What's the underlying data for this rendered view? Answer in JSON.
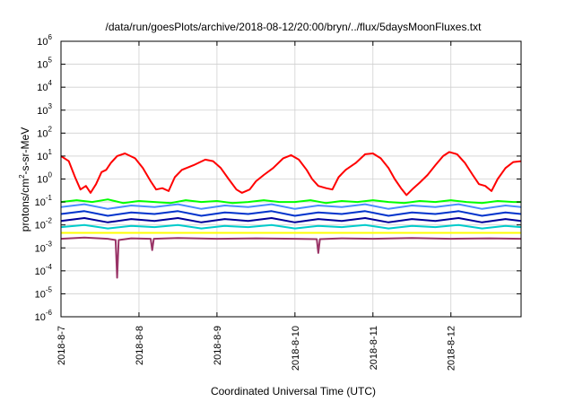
{
  "chart_data": {
    "type": "line",
    "title": "/data/run/goesPlots/archive/2018-08-12/20:00/bryn/../flux/5daysMoonFluxes.txt",
    "xlabel": "Coordinated Universal Time (UTC)",
    "ylabel": "protons/cm²-s-sr-MeV",
    "ylabel_parts": {
      "pre": "protons/cm",
      "sup": "2",
      "post": "-s-sr-MeV"
    },
    "y_scale": "log",
    "ylim": [
      1e-06,
      1000000.0
    ],
    "y_ticks": [
      {
        "base": "10",
        "exp": "-6",
        "value": 1e-06
      },
      {
        "base": "10",
        "exp": "-5",
        "value": 1e-05
      },
      {
        "base": "10",
        "exp": "-4",
        "value": 0.0001
      },
      {
        "base": "10",
        "exp": "-3",
        "value": 0.001
      },
      {
        "base": "10",
        "exp": "-2",
        "value": 0.01
      },
      {
        "base": "10",
        "exp": "-1",
        "value": 0.1
      },
      {
        "base": "10",
        "exp": "0",
        "value": 1
      },
      {
        "base": "10",
        "exp": "1",
        "value": 10
      },
      {
        "base": "10",
        "exp": "2",
        "value": 100
      },
      {
        "base": "10",
        "exp": "3",
        "value": 1000
      },
      {
        "base": "10",
        "exp": "4",
        "value": 10000
      },
      {
        "base": "10",
        "exp": "5",
        "value": 100000
      },
      {
        "base": "10",
        "exp": "6",
        "value": 1000000
      }
    ],
    "xlim_days": [
      0,
      5.9
    ],
    "x_ticks": [
      {
        "label": "2018-8-7",
        "day": 0
      },
      {
        "label": "2018-8-8",
        "day": 1
      },
      {
        "label": "2018-8-9",
        "day": 2
      },
      {
        "label": "2018-8-10",
        "day": 3
      },
      {
        "label": "2018-8-11",
        "day": 4
      },
      {
        "label": "2018-8-12",
        "day": 5
      }
    ],
    "grid": true,
    "legend": "none",
    "series": [
      {
        "color": "#ff0000",
        "points": [
          [
            0,
            10
          ],
          [
            0.1,
            6
          ],
          [
            0.18,
            1.2
          ],
          [
            0.25,
            0.35
          ],
          [
            0.32,
            0.5
          ],
          [
            0.38,
            0.25
          ],
          [
            0.45,
            0.6
          ],
          [
            0.52,
            2
          ],
          [
            0.58,
            2.5
          ],
          [
            0.64,
            5
          ],
          [
            0.72,
            10
          ],
          [
            0.82,
            13
          ],
          [
            0.95,
            8
          ],
          [
            1.05,
            3
          ],
          [
            1.15,
            0.8
          ],
          [
            1.22,
            0.35
          ],
          [
            1.3,
            0.4
          ],
          [
            1.38,
            0.3
          ],
          [
            1.46,
            1.2
          ],
          [
            1.55,
            2.5
          ],
          [
            1.7,
            4
          ],
          [
            1.85,
            7
          ],
          [
            1.95,
            6
          ],
          [
            2.05,
            3
          ],
          [
            2.15,
            1
          ],
          [
            2.25,
            0.35
          ],
          [
            2.32,
            0.25
          ],
          [
            2.42,
            0.35
          ],
          [
            2.5,
            0.8
          ],
          [
            2.6,
            1.5
          ],
          [
            2.72,
            3
          ],
          [
            2.85,
            8
          ],
          [
            2.95,
            11
          ],
          [
            3.05,
            7
          ],
          [
            3.15,
            2.5
          ],
          [
            3.22,
            1
          ],
          [
            3.3,
            0.5
          ],
          [
            3.4,
            0.4
          ],
          [
            3.48,
            0.35
          ],
          [
            3.56,
            1.2
          ],
          [
            3.65,
            2.5
          ],
          [
            3.78,
            5
          ],
          [
            3.9,
            12
          ],
          [
            4,
            13
          ],
          [
            4.1,
            8
          ],
          [
            4.2,
            3
          ],
          [
            4.28,
            1
          ],
          [
            4.36,
            0.4
          ],
          [
            4.43,
            0.2
          ],
          [
            4.52,
            0.4
          ],
          [
            4.6,
            0.7
          ],
          [
            4.7,
            1.5
          ],
          [
            4.8,
            4
          ],
          [
            4.9,
            10
          ],
          [
            4.98,
            15
          ],
          [
            5.08,
            12
          ],
          [
            5.18,
            5
          ],
          [
            5.28,
            1.5
          ],
          [
            5.36,
            0.6
          ],
          [
            5.44,
            0.5
          ],
          [
            5.52,
            0.3
          ],
          [
            5.6,
            1
          ],
          [
            5.7,
            3
          ],
          [
            5.8,
            5.5
          ],
          [
            5.9,
            6
          ]
        ]
      },
      {
        "color": "#00ff00",
        "points": [
          [
            0,
            0.1
          ],
          [
            0.2,
            0.12
          ],
          [
            0.4,
            0.1
          ],
          [
            0.6,
            0.13
          ],
          [
            0.8,
            0.09
          ],
          [
            1,
            0.11
          ],
          [
            1.2,
            0.1
          ],
          [
            1.4,
            0.09
          ],
          [
            1.6,
            0.12
          ],
          [
            1.8,
            0.1
          ],
          [
            2,
            0.11
          ],
          [
            2.2,
            0.09
          ],
          [
            2.4,
            0.1
          ],
          [
            2.6,
            0.12
          ],
          [
            2.8,
            0.1
          ],
          [
            3,
            0.1
          ],
          [
            3.2,
            0.12
          ],
          [
            3.4,
            0.09
          ],
          [
            3.6,
            0.11
          ],
          [
            3.8,
            0.1
          ],
          [
            4,
            0.12
          ],
          [
            4.2,
            0.1
          ],
          [
            4.4,
            0.09
          ],
          [
            4.6,
            0.11
          ],
          [
            4.8,
            0.1
          ],
          [
            5,
            0.12
          ],
          [
            5.2,
            0.1
          ],
          [
            5.4,
            0.09
          ],
          [
            5.6,
            0.11
          ],
          [
            5.8,
            0.1
          ],
          [
            5.9,
            0.1
          ]
        ]
      },
      {
        "color": "#4a8cff",
        "points": [
          [
            0,
            0.06
          ],
          [
            0.3,
            0.08
          ],
          [
            0.6,
            0.05
          ],
          [
            0.9,
            0.07
          ],
          [
            1.2,
            0.06
          ],
          [
            1.5,
            0.08
          ],
          [
            1.8,
            0.05
          ],
          [
            2.1,
            0.07
          ],
          [
            2.4,
            0.06
          ],
          [
            2.7,
            0.08
          ],
          [
            3,
            0.05
          ],
          [
            3.3,
            0.07
          ],
          [
            3.6,
            0.06
          ],
          [
            3.9,
            0.08
          ],
          [
            4.2,
            0.05
          ],
          [
            4.5,
            0.07
          ],
          [
            4.8,
            0.06
          ],
          [
            5.1,
            0.08
          ],
          [
            5.4,
            0.05
          ],
          [
            5.7,
            0.07
          ],
          [
            5.9,
            0.06
          ]
        ]
      },
      {
        "color": "#0033cc",
        "points": [
          [
            0,
            0.03
          ],
          [
            0.3,
            0.04
          ],
          [
            0.6,
            0.025
          ],
          [
            0.9,
            0.035
          ],
          [
            1.2,
            0.03
          ],
          [
            1.5,
            0.04
          ],
          [
            1.8,
            0.025
          ],
          [
            2.1,
            0.035
          ],
          [
            2.4,
            0.03
          ],
          [
            2.7,
            0.04
          ],
          [
            3,
            0.025
          ],
          [
            3.3,
            0.035
          ],
          [
            3.6,
            0.03
          ],
          [
            3.9,
            0.04
          ],
          [
            4.2,
            0.025
          ],
          [
            4.5,
            0.035
          ],
          [
            4.8,
            0.03
          ],
          [
            5.1,
            0.04
          ],
          [
            5.4,
            0.025
          ],
          [
            5.7,
            0.035
          ],
          [
            5.9,
            0.03
          ]
        ]
      },
      {
        "color": "#000099",
        "points": [
          [
            0,
            0.015
          ],
          [
            0.3,
            0.02
          ],
          [
            0.6,
            0.013
          ],
          [
            0.9,
            0.018
          ],
          [
            1.2,
            0.015
          ],
          [
            1.5,
            0.02
          ],
          [
            1.8,
            0.013
          ],
          [
            2.1,
            0.018
          ],
          [
            2.4,
            0.015
          ],
          [
            2.7,
            0.02
          ],
          [
            3,
            0.013
          ],
          [
            3.3,
            0.018
          ],
          [
            3.6,
            0.015
          ],
          [
            3.9,
            0.02
          ],
          [
            4.2,
            0.013
          ],
          [
            4.5,
            0.018
          ],
          [
            4.8,
            0.015
          ],
          [
            5.1,
            0.02
          ],
          [
            5.4,
            0.013
          ],
          [
            5.7,
            0.018
          ],
          [
            5.9,
            0.015
          ]
        ]
      },
      {
        "color": "#00cccc",
        "points": [
          [
            0,
            0.008
          ],
          [
            0.3,
            0.01
          ],
          [
            0.6,
            0.007
          ],
          [
            0.9,
            0.009
          ],
          [
            1.2,
            0.008
          ],
          [
            1.5,
            0.01
          ],
          [
            1.8,
            0.007
          ],
          [
            2.1,
            0.009
          ],
          [
            2.4,
            0.008
          ],
          [
            2.7,
            0.01
          ],
          [
            3,
            0.007
          ],
          [
            3.3,
            0.009
          ],
          [
            3.6,
            0.008
          ],
          [
            3.9,
            0.01
          ],
          [
            4.2,
            0.007
          ],
          [
            4.5,
            0.009
          ],
          [
            4.8,
            0.008
          ],
          [
            5.1,
            0.01
          ],
          [
            5.4,
            0.007
          ],
          [
            5.7,
            0.009
          ],
          [
            5.9,
            0.008
          ]
        ]
      },
      {
        "color": "#ffff00",
        "points": [
          [
            0,
            0.0045
          ],
          [
            1,
            0.0045
          ],
          [
            2,
            0.0045
          ],
          [
            3,
            0.0045
          ],
          [
            4,
            0.0045
          ],
          [
            5,
            0.0045
          ],
          [
            5.9,
            0.0045
          ]
        ]
      },
      {
        "color": "#993366",
        "points": [
          [
            0,
            0.0025
          ],
          [
            0.3,
            0.0028
          ],
          [
            0.6,
            0.0025
          ],
          [
            0.7,
            0.0022
          ],
          [
            0.72,
            5e-05
          ],
          [
            0.74,
            0.0022
          ],
          [
            0.9,
            0.0026
          ],
          [
            1.15,
            0.0025
          ],
          [
            1.17,
            0.0008
          ],
          [
            1.19,
            0.0025
          ],
          [
            1.5,
            0.0027
          ],
          [
            2,
            0.0025
          ],
          [
            2.5,
            0.0026
          ],
          [
            3,
            0.0025
          ],
          [
            3.28,
            0.0024
          ],
          [
            3.3,
            0.0006
          ],
          [
            3.32,
            0.0024
          ],
          [
            3.6,
            0.0026
          ],
          [
            4,
            0.0025
          ],
          [
            4.5,
            0.0027
          ],
          [
            5,
            0.0025
          ],
          [
            5.5,
            0.0026
          ],
          [
            5.9,
            0.0025
          ]
        ]
      }
    ]
  }
}
